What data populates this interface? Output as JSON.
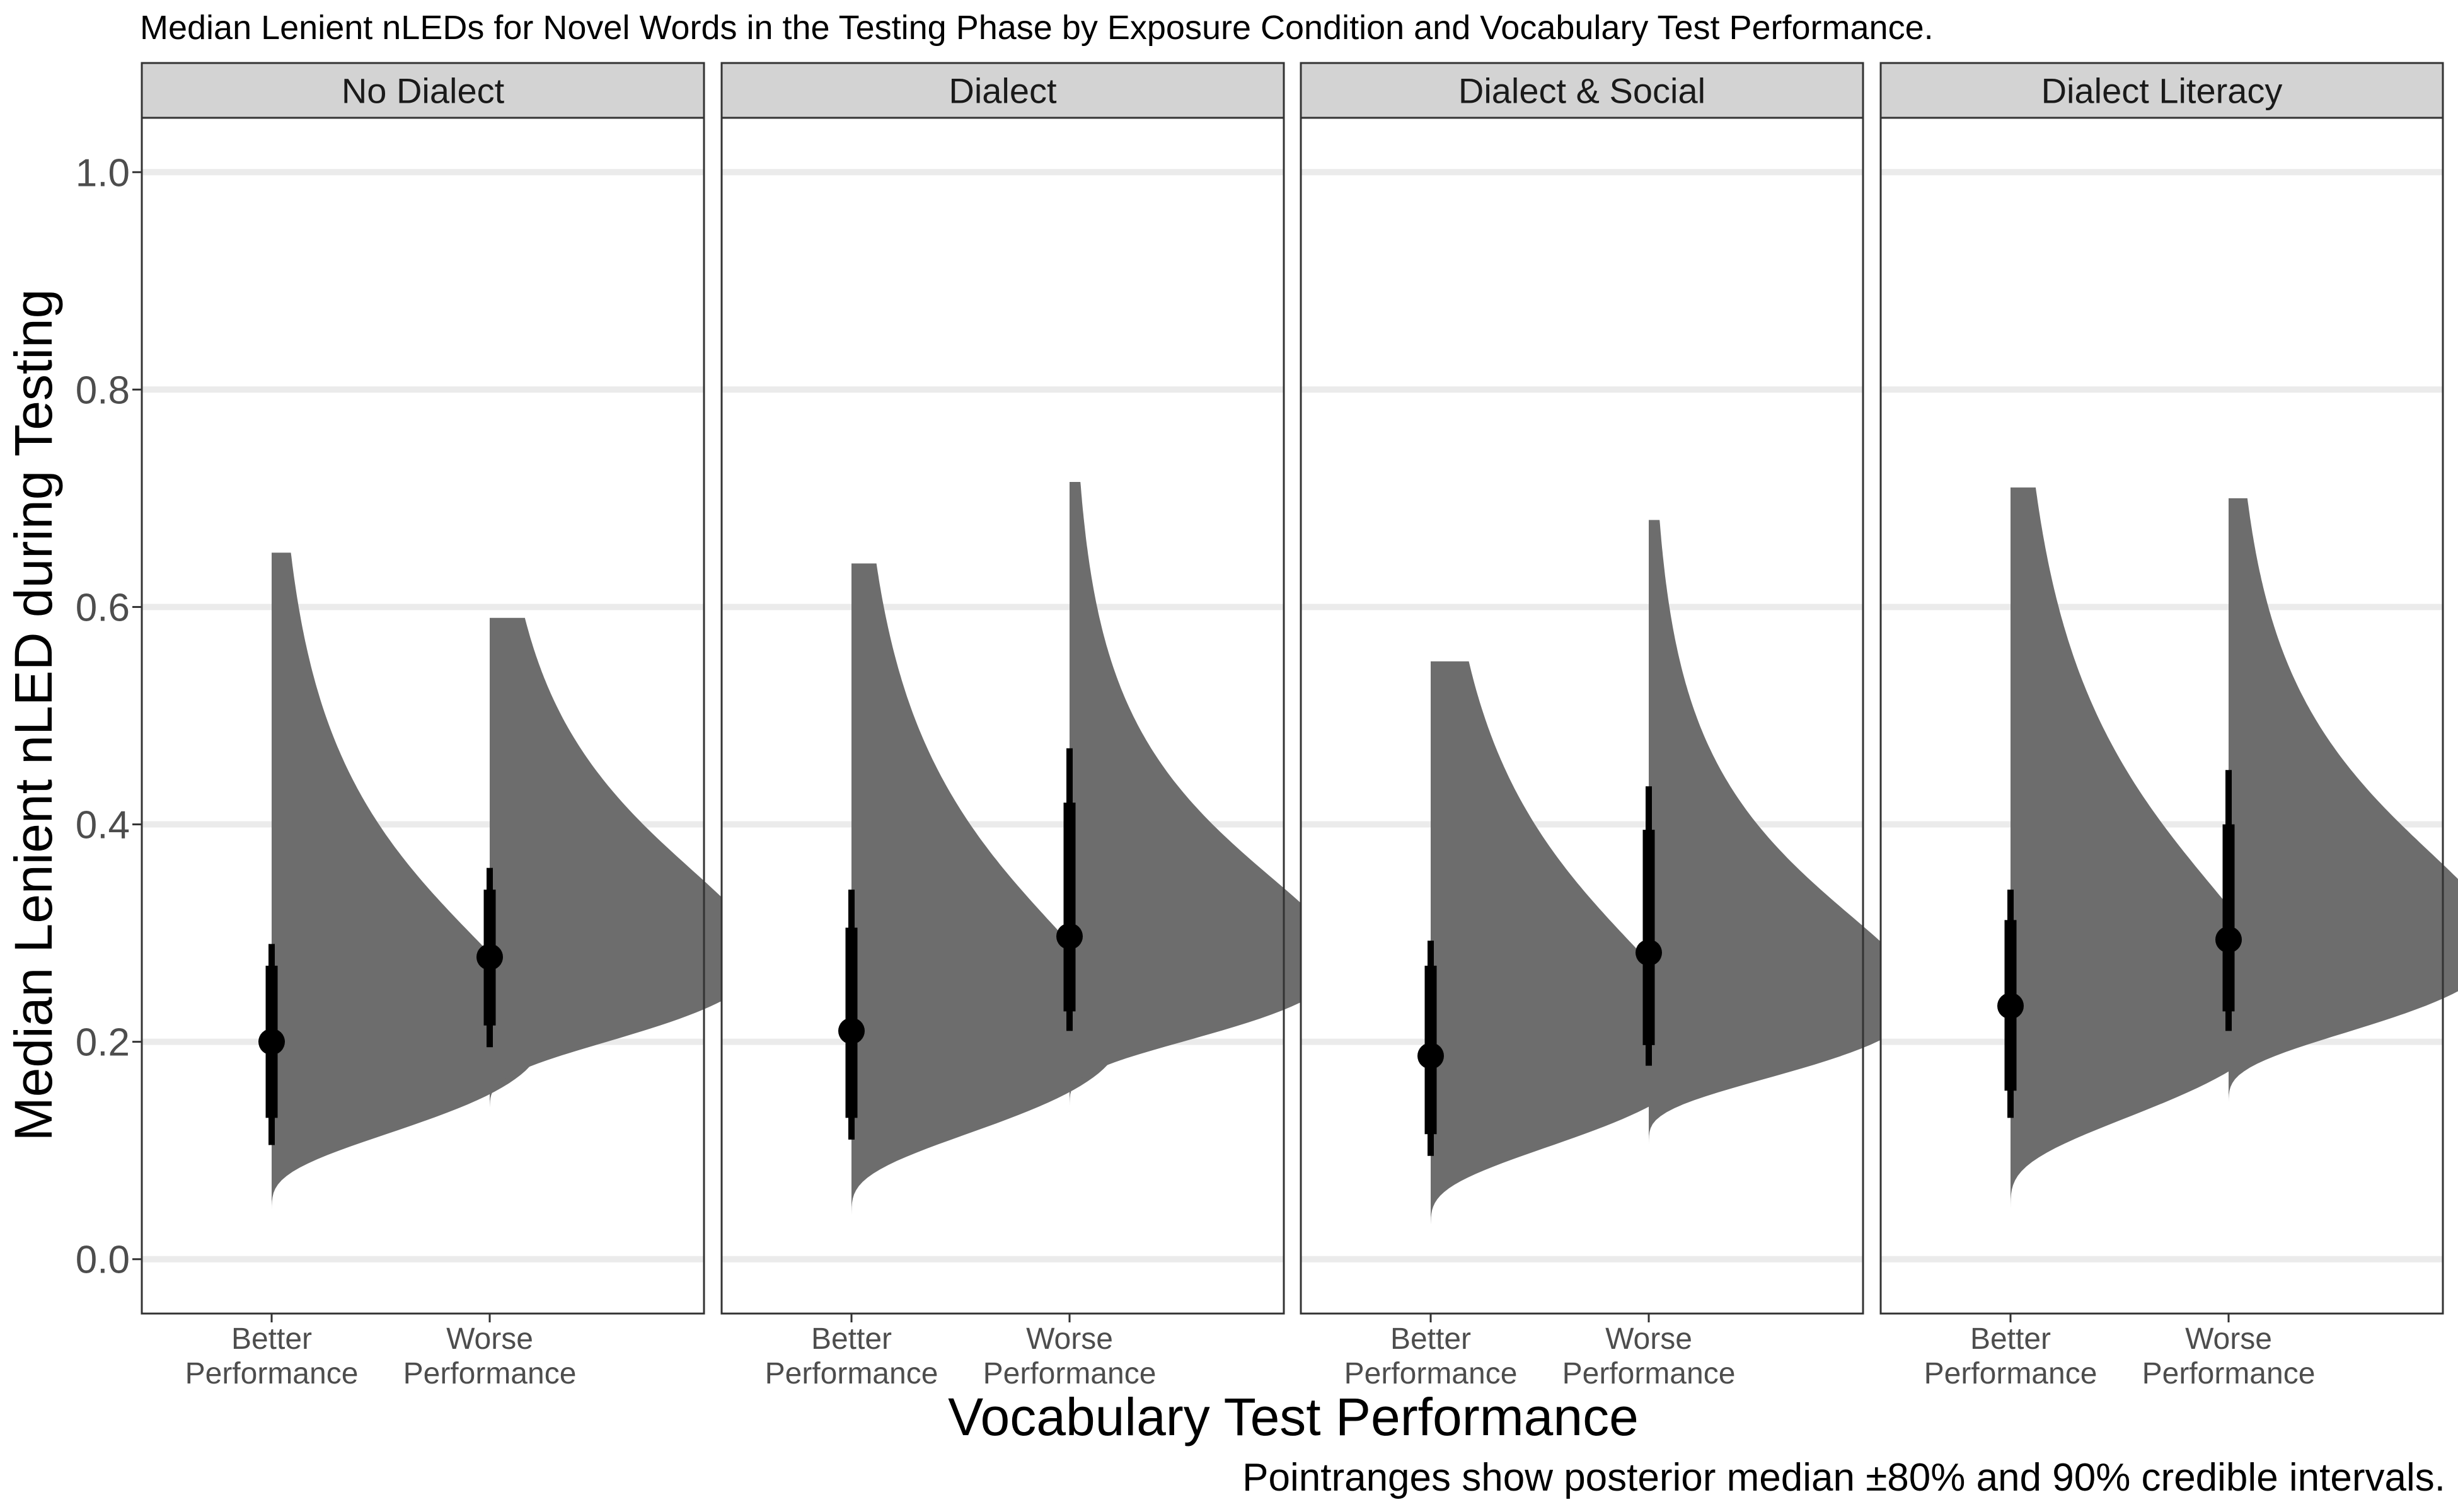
{
  "chart_data": {
    "type": "violin",
    "title": "Median Lenient nLEDs for Novel Words in the Testing Phase by Exposure Condition and Vocabulary Test Performance.",
    "caption": "Pointranges show posterior median ±80% and 90% credible intervals.",
    "xlabel": "Vocabulary Test Performance",
    "ylabel": "Median Lenient nLED during Testing",
    "ylim": [
      -0.05,
      1.05
    ],
    "yticks": [
      0.0,
      0.2,
      0.4,
      0.6,
      0.8,
      1.0
    ],
    "ytick_labels": [
      "0.0",
      "0.2",
      "0.4",
      "0.6",
      "0.8",
      "1.0"
    ],
    "categories": [
      {
        "line1": "Better",
        "line2": "Performance"
      },
      {
        "line1": "Worse",
        "line2": "Performance"
      }
    ],
    "grid": true,
    "colors": {
      "density": "#6d6d6d",
      "point": "#000000",
      "strip": "#d3d3d3",
      "grid": "#ebebeb",
      "border": "#333333"
    },
    "panels": [
      {
        "name": "No Dialect",
        "groups": [
          {
            "category": "Better Performance",
            "median": 0.2,
            "ci80": [
              0.13,
              0.27
            ],
            "ci90": [
              0.105,
              0.29
            ],
            "dist_min": 0.03,
            "dist_max": 0.65,
            "density_mode": 0.205
          },
          {
            "category": "Worse Performance",
            "median": 0.278,
            "ci80": [
              0.215,
              0.34
            ],
            "ci90": [
              0.195,
              0.36
            ],
            "dist_min": 0.125,
            "dist_max": 0.59,
            "density_mode": 0.278
          }
        ]
      },
      {
        "name": "Dialect",
        "groups": [
          {
            "category": "Better Performance",
            "median": 0.21,
            "ci80": [
              0.13,
              0.305
            ],
            "ci90": [
              0.11,
              0.34
            ],
            "dist_min": 0.025,
            "dist_max": 0.64,
            "density_mode": 0.21
          },
          {
            "category": "Worse Performance",
            "median": 0.297,
            "ci80": [
              0.228,
              0.42
            ],
            "ci90": [
              0.21,
              0.47
            ],
            "dist_min": 0.13,
            "dist_max": 0.715,
            "density_mode": 0.275
          }
        ]
      },
      {
        "name": "Dialect & Social",
        "groups": [
          {
            "category": "Better Performance",
            "median": 0.187,
            "ci80": [
              0.115,
              0.27
            ],
            "ci90": [
              0.095,
              0.293
            ],
            "dist_min": 0.015,
            "dist_max": 0.55,
            "density_mode": 0.195
          },
          {
            "category": "Worse Performance",
            "median": 0.282,
            "ci80": [
              0.197,
              0.395
            ],
            "ci90": [
              0.178,
              0.435
            ],
            "dist_min": 0.095,
            "dist_max": 0.68,
            "density_mode": 0.24
          }
        ]
      },
      {
        "name": "Dialect Literacy",
        "groups": [
          {
            "category": "Better Performance",
            "median": 0.233,
            "ci80": [
              0.155,
              0.312
            ],
            "ci90": [
              0.13,
              0.34
            ],
            "dist_min": 0.03,
            "dist_max": 0.71,
            "density_mode": 0.235
          },
          {
            "category": "Worse Performance",
            "median": 0.294,
            "ci80": [
              0.228,
              0.4
            ],
            "ci90": [
              0.21,
              0.45
            ],
            "dist_min": 0.13,
            "dist_max": 0.7,
            "density_mode": 0.29
          }
        ]
      }
    ]
  }
}
